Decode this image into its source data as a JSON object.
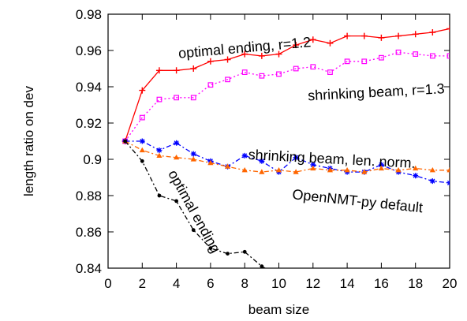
{
  "chart_data": {
    "type": "line",
    "xlabel": "beam size",
    "ylabel": "length ratio on dev",
    "xlim": [
      0,
      20
    ],
    "ylim": [
      0.84,
      0.98
    ],
    "xticks": [
      "0",
      "2",
      "4",
      "6",
      "8",
      "10",
      "12",
      "14",
      "16",
      "18",
      "20"
    ],
    "yticks": [
      "0.84",
      "0.86",
      "0.88",
      "0.9",
      "0.92",
      "0.94",
      "0.96",
      "0.98"
    ],
    "grid": false,
    "legend": "none",
    "series": [
      {
        "name": "optimal ending, r=1.2",
        "color": "#ff0000",
        "marker": "plus",
        "dash": "solid",
        "x": [
          1,
          2,
          3,
          4,
          5,
          6,
          7,
          8,
          9,
          10,
          11,
          12,
          13,
          14,
          15,
          16,
          17,
          18,
          19,
          20
        ],
        "y": [
          0.91,
          0.938,
          0.949,
          0.949,
          0.95,
          0.954,
          0.955,
          0.958,
          0.957,
          0.958,
          0.963,
          0.966,
          0.964,
          0.968,
          0.968,
          0.967,
          0.968,
          0.969,
          0.97,
          0.972
        ]
      },
      {
        "name": "shrinking beam, r=1.3",
        "color": "#ff00ff",
        "marker": "square",
        "dash": "dotted",
        "x": [
          1,
          2,
          3,
          4,
          5,
          6,
          7,
          8,
          9,
          10,
          11,
          12,
          13,
          14,
          15,
          16,
          17,
          18,
          19,
          20
        ],
        "y": [
          0.91,
          0.923,
          0.933,
          0.934,
          0.934,
          0.941,
          0.944,
          0.948,
          0.946,
          0.947,
          0.95,
          0.951,
          0.948,
          0.954,
          0.954,
          0.956,
          0.959,
          0.958,
          0.957,
          0.957
        ]
      },
      {
        "name": "shrinking beam, len. norm.",
        "color": "#0000ff",
        "marker": "star",
        "dash": "dashdot",
        "x": [
          1,
          2,
          3,
          4,
          5,
          6,
          7,
          8,
          9,
          10,
          11,
          12,
          13,
          14,
          15,
          16,
          17,
          18,
          19,
          20
        ],
        "y": [
          0.91,
          0.91,
          0.905,
          0.909,
          0.903,
          0.899,
          0.896,
          0.902,
          0.899,
          0.893,
          0.901,
          0.897,
          0.895,
          0.893,
          0.893,
          0.897,
          0.893,
          0.891,
          0.888,
          0.887
        ]
      },
      {
        "name": "OpenNMT-py default",
        "color": "#ff6600",
        "marker": "triangle",
        "dash": "dashdot",
        "x": [
          1,
          2,
          3,
          4,
          5,
          6,
          7,
          8,
          9,
          10,
          11,
          12,
          13,
          14,
          15,
          16,
          17,
          18,
          19,
          20
        ],
        "y": [
          0.91,
          0.905,
          0.902,
          0.901,
          0.9,
          0.898,
          0.896,
          0.894,
          0.893,
          0.894,
          0.893,
          0.895,
          0.894,
          0.894,
          0.893,
          0.895,
          0.894,
          0.895,
          0.894,
          0.894
        ]
      },
      {
        "name": "optimal ending",
        "color": "#000000",
        "marker": "dot",
        "dash": "dashdot",
        "x": [
          1,
          2,
          3,
          4,
          5,
          6,
          7,
          8,
          9,
          10
        ],
        "y": [
          0.91,
          0.899,
          0.88,
          0.877,
          0.861,
          0.851,
          0.848,
          0.849,
          0.841,
          0.836
        ]
      }
    ],
    "annotations": [
      {
        "text": "optimal ending, r=1.2",
        "x": 8.0,
        "y": 0.961,
        "rotate": -5
      },
      {
        "text": "shrinking beam, r=1.3",
        "x": 15.7,
        "y": 0.9365,
        "rotate": -3
      },
      {
        "text": "shrinking beam, len. norm.",
        "x": 13.1,
        "y": 0.8997,
        "rotate": 3
      },
      {
        "text": "OpenNMT-py default",
        "x": 14.6,
        "y": 0.8765,
        "rotate": 6
      },
      {
        "text": "optimal ending",
        "x": 5.0,
        "y": 0.871,
        "rotate": 61
      }
    ]
  }
}
